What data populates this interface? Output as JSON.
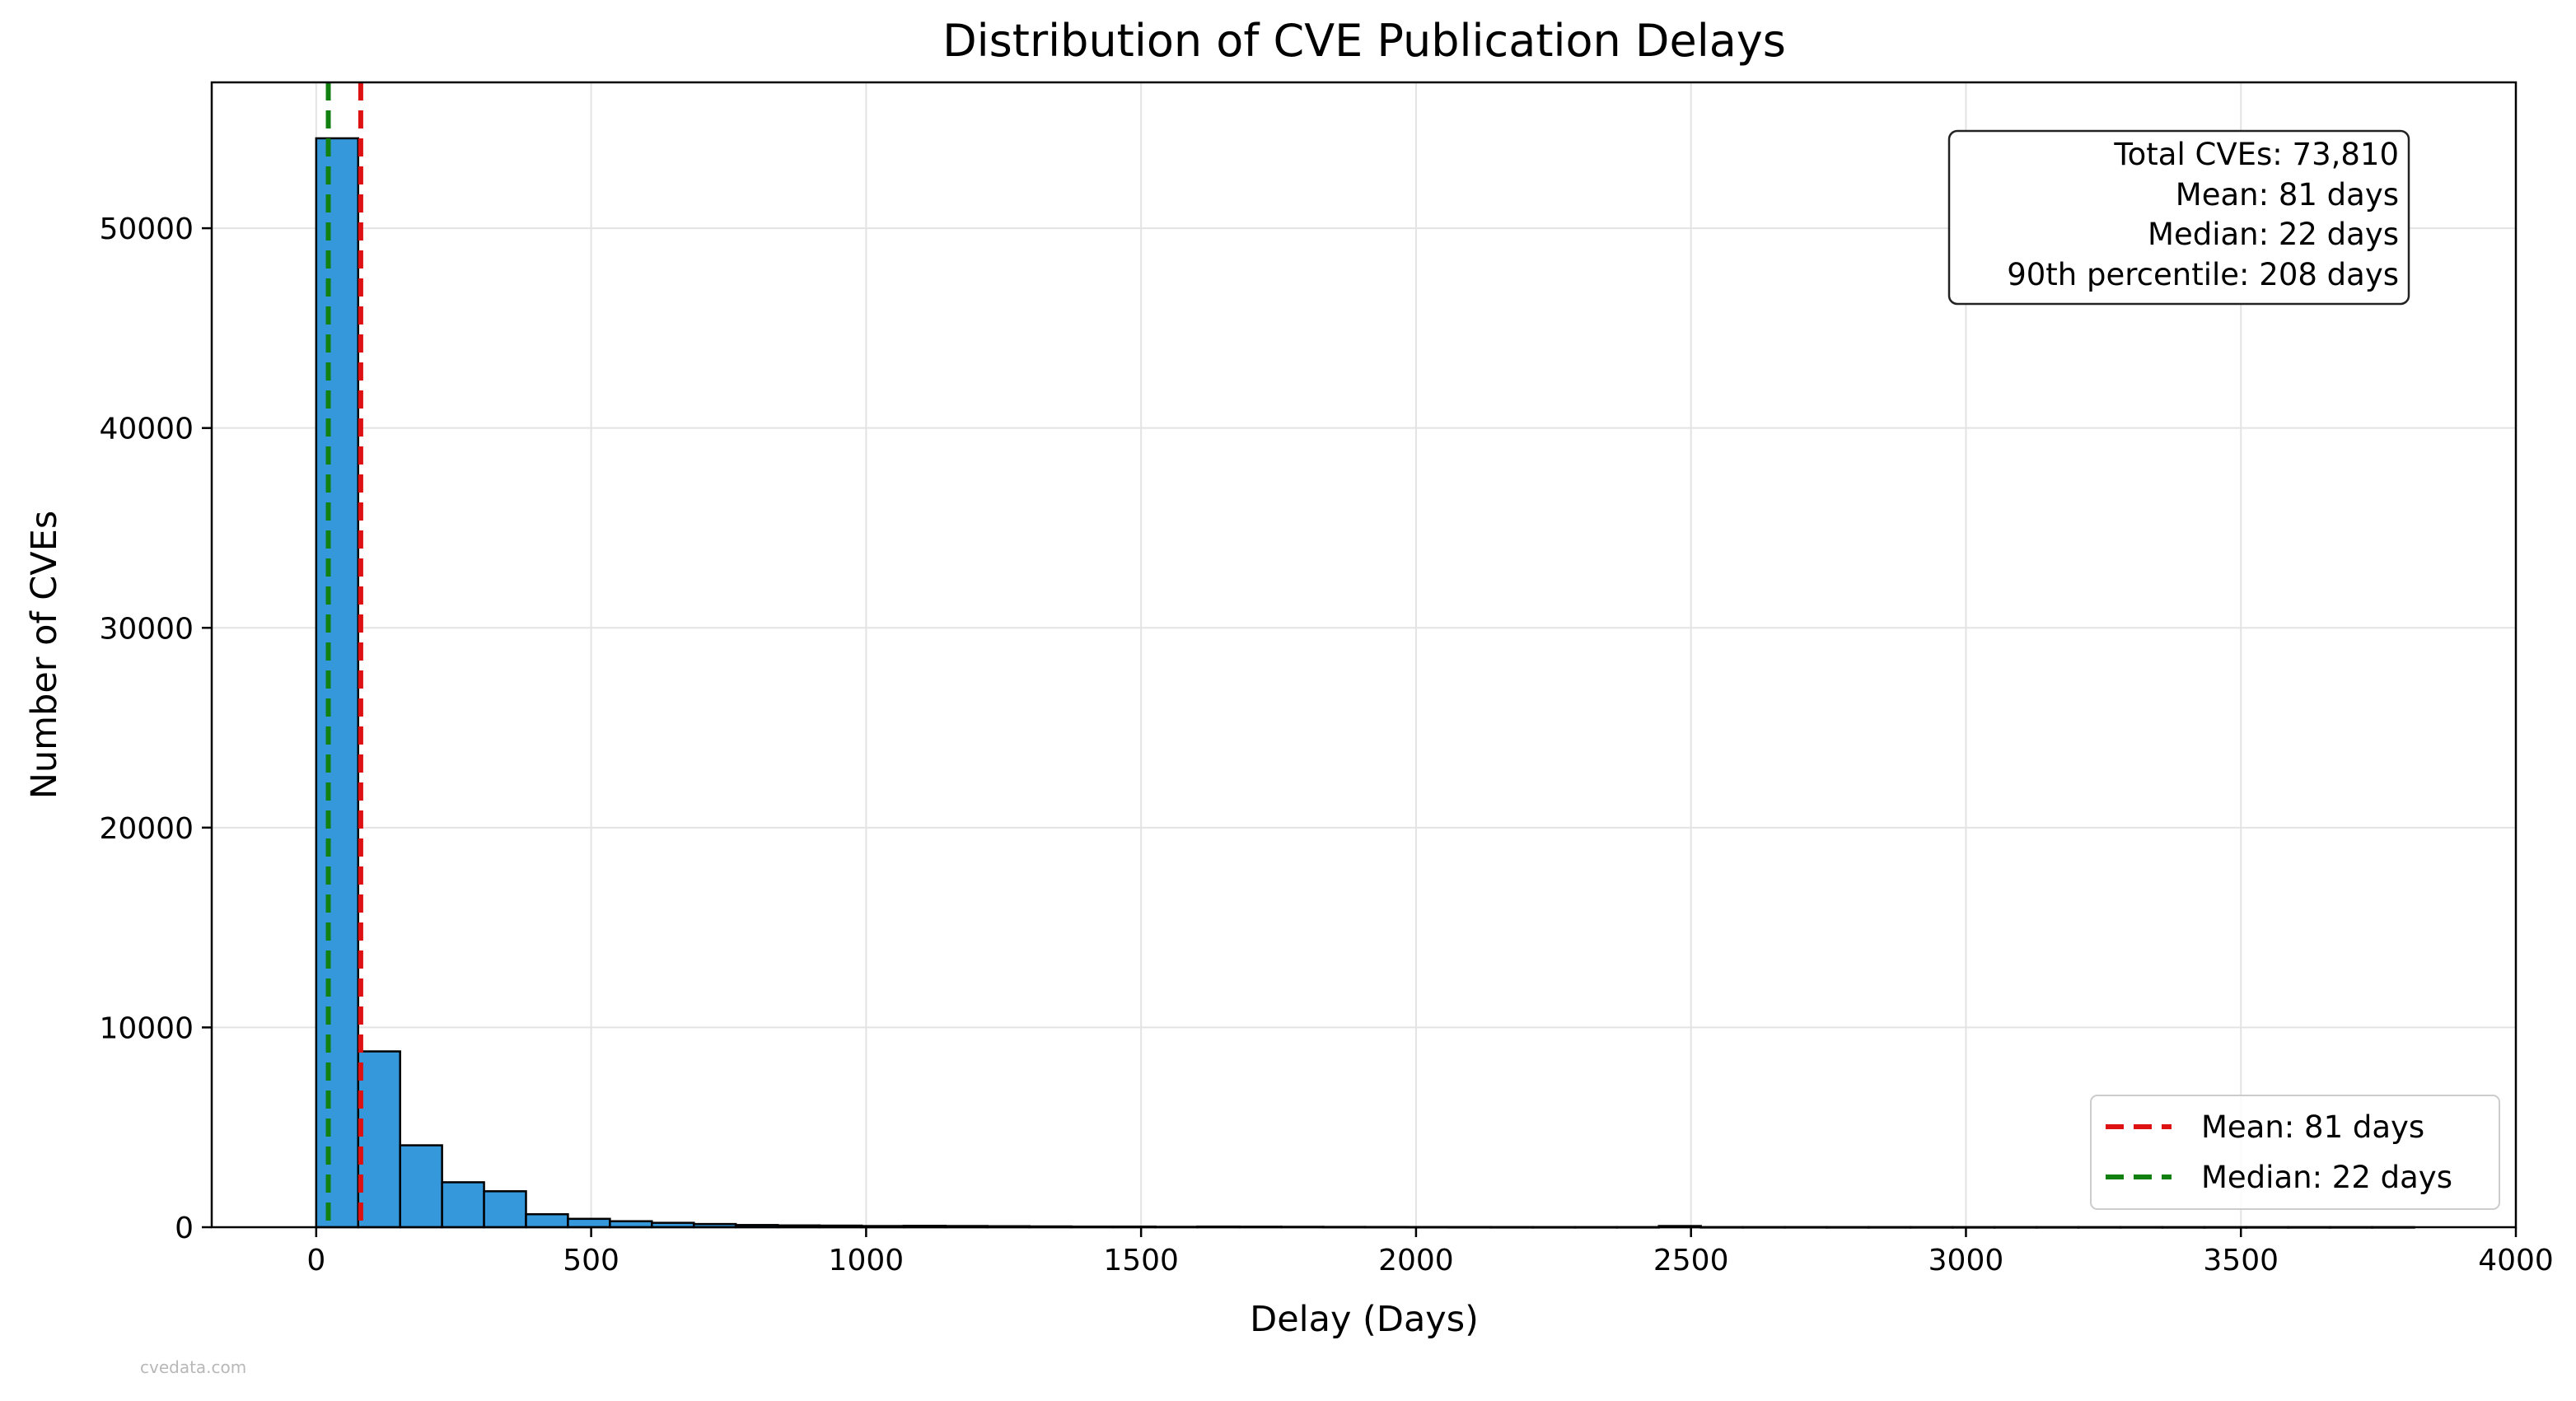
{
  "chart_data": {
    "type": "bar",
    "title": "Distribution of CVE Publication Delays",
    "xlabel": "Delay (Days)",
    "ylabel": "Number of CVEs",
    "xlim": [
      -190,
      4000
    ],
    "ylim": [
      0,
      57300
    ],
    "xticks": [
      0,
      500,
      1000,
      1500,
      2000,
      2500,
      3000,
      3500,
      4000
    ],
    "yticks": [
      0,
      10000,
      20000,
      30000,
      40000,
      50000
    ],
    "grid": true,
    "bin_width": 76.3,
    "bin_start": 0,
    "values": [
      54500,
      8800,
      4100,
      2250,
      1800,
      650,
      420,
      300,
      220,
      160,
      110,
      90,
      80,
      60,
      70,
      60,
      50,
      40,
      30,
      30,
      20,
      30,
      25,
      20,
      15,
      12,
      10,
      8,
      6,
      5,
      5,
      5,
      60,
      5,
      5,
      5,
      3,
      3,
      3,
      3,
      3,
      3,
      3,
      3,
      2,
      2,
      2,
      2,
      2,
      2
    ],
    "bar_color": "#3498db",
    "vlines": [
      {
        "name": "Mean: 81 days",
        "x": 81,
        "color": "#dd1111"
      },
      {
        "name": "Median: 22 days",
        "x": 22,
        "color": "#118011"
      }
    ],
    "legend_position": "lower-right",
    "stats_box": {
      "position": "upper-right",
      "lines": [
        "Total CVEs: 73,810",
        "Mean: 81 days",
        "Median: 22 days",
        "90th percentile: 208 days"
      ]
    }
  },
  "watermark": "cvedata.com"
}
